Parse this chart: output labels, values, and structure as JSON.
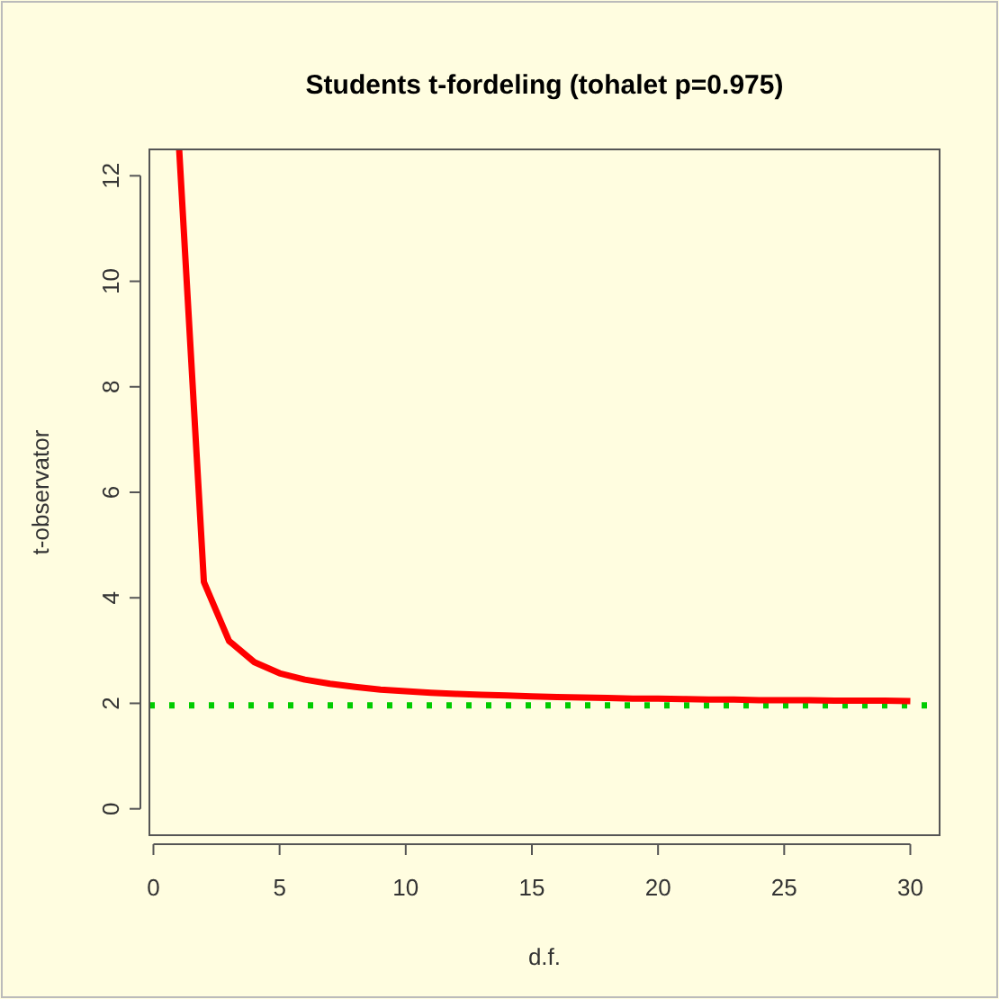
{
  "chart_data": {
    "type": "line",
    "title": "Students t-fordeling (tohalet p=0.975)",
    "xlabel": "d.f.",
    "ylabel": "t-observator",
    "x": [
      1.02,
      2,
      3,
      4,
      5,
      6,
      7,
      8,
      9,
      10,
      11,
      12,
      13,
      14,
      15,
      16,
      17,
      18,
      19,
      20,
      21,
      22,
      23,
      24,
      25,
      26,
      27,
      28,
      29,
      30
    ],
    "series": [
      {
        "color": "#ff0000",
        "values": [
          12.5,
          4.3,
          3.18,
          2.78,
          2.57,
          2.45,
          2.37,
          2.31,
          2.26,
          2.23,
          2.2,
          2.18,
          2.16,
          2.15,
          2.13,
          2.12,
          2.11,
          2.1,
          2.09,
          2.09,
          2.08,
          2.07,
          2.07,
          2.06,
          2.06,
          2.06,
          2.05,
          2.05,
          2.05,
          2.04
        ]
      }
    ],
    "xlim": [
      -0.16,
      31.16
    ],
    "ylim": [
      -0.5,
      12.5
    ],
    "xticks": [
      0,
      5,
      10,
      15,
      20,
      25,
      30
    ],
    "yticks": [
      0,
      2,
      4,
      6,
      8,
      10,
      12
    ],
    "ref_lines": [
      {
        "axis": "y",
        "value": 1.96,
        "color": "#00cc00",
        "line_style": "dotted"
      }
    ],
    "grid": false,
    "marker": "none",
    "line_style": "solid"
  }
}
